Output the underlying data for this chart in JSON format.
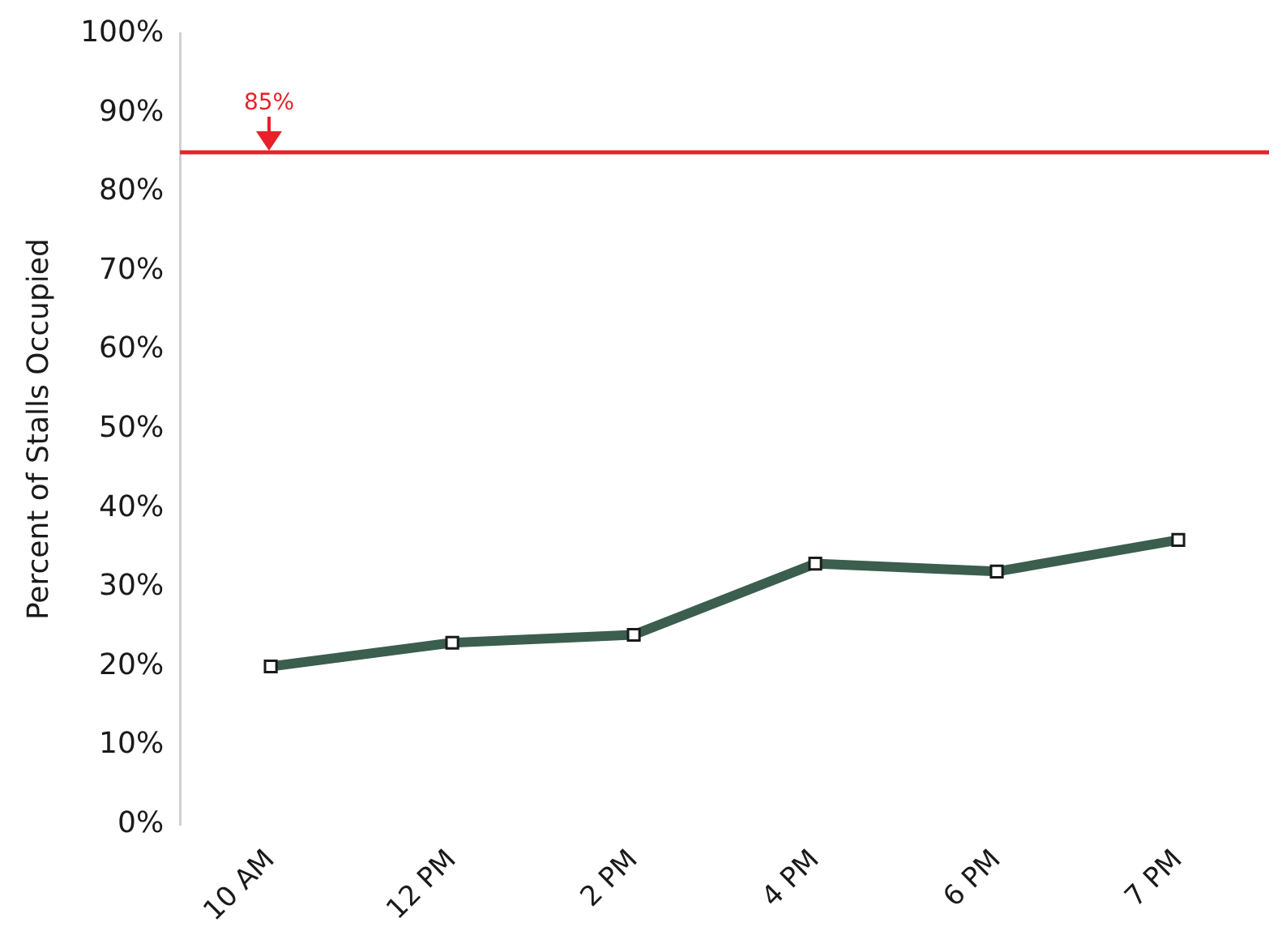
{
  "chart_data": {
    "type": "line",
    "ylabel": "Percent of Stalls Occupied",
    "categories": [
      "10 AM",
      "12 PM",
      "2 PM",
      "4 PM",
      "6 PM",
      "7 PM"
    ],
    "series": [
      {
        "color": "#3b5e4e",
        "values": [
          20,
          23,
          24,
          33,
          32,
          36
        ]
      }
    ],
    "ylim": [
      0,
      100
    ],
    "yticks": [
      {
        "value": 0,
        "label": "0%"
      },
      {
        "value": 10,
        "label": "10%"
      },
      {
        "value": 20,
        "label": "20%"
      },
      {
        "value": 30,
        "label": "30%"
      },
      {
        "value": 40,
        "label": "40%"
      },
      {
        "value": 50,
        "label": "50%"
      },
      {
        "value": 60,
        "label": "60%"
      },
      {
        "value": 70,
        "label": "70%"
      },
      {
        "value": 80,
        "label": "80%"
      },
      {
        "value": 90,
        "label": "90%"
      },
      {
        "value": 100,
        "label": "100%"
      }
    ],
    "ref_lines": [
      {
        "axis": "y",
        "value": 85,
        "label": "85%",
        "color": "#e8202a"
      }
    ],
    "grid": false,
    "legend": false,
    "marker": "square",
    "line_style": "solid"
  }
}
